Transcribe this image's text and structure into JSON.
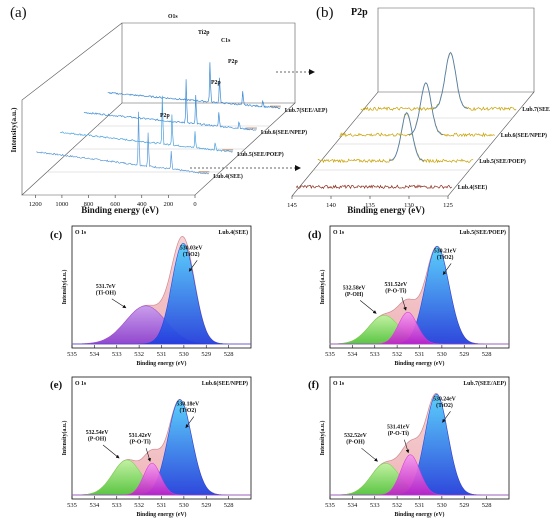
{
  "colors": {
    "envelope_fill": "#f2c2c6",
    "envelope_stroke": "#d08a91",
    "ti_o_ti": "#1f3fe0",
    "ti_oh": "#9b4fd6",
    "p_o_ti": "#d83ad6",
    "p_oh": "#6fdc4a",
    "trace_surface": "#6ab0ff",
    "trace_a": "#b06a3a",
    "trace_b_yellow": "#c9a000",
    "trace_b_red": "#8b2a1a"
  },
  "chart_data": [
    {
      "type": "line",
      "panel": "(a)",
      "xlabel": "Binding energy (eV)",
      "ylabel": "Intensity(a.u.)",
      "xlim": [
        1300,
        0
      ],
      "xticks": [
        "1200",
        "1000",
        "800",
        "600",
        "400",
        "200",
        "0"
      ],
      "peak_labels": [
        "O1s",
        "Ti2p",
        "C1s",
        "P2p",
        "P2p",
        "P2p"
      ],
      "series": [
        {
          "name": "Lub.4(SEE)",
          "peaks_eV": [
            531,
            459,
            285
          ]
        },
        {
          "name": "Lub.5(SEE/POEP)",
          "peaks_eV": [
            531,
            459,
            285,
            134
          ]
        },
        {
          "name": "Lub.6(SEE/NPEP)",
          "peaks_eV": [
            531,
            459,
            285,
            134
          ]
        },
        {
          "name": "Lub.7(SEE/AEP)",
          "peaks_eV": [
            531,
            459,
            285,
            134
          ]
        }
      ]
    },
    {
      "type": "line",
      "panel": "(b)",
      "title": "P2p",
      "xlabel": "Binding energy (eV)",
      "xlim": [
        145,
        125
      ],
      "xticks": [
        "145",
        "140",
        "135",
        "130",
        "125"
      ],
      "series": [
        {
          "name": "Lub.4(SEE)",
          "peak_eV": null
        },
        {
          "name": "Lub.5(SEE/POEP)",
          "peak_eV": 133.6
        },
        {
          "name": "Lub.6(SEE/NPEP)",
          "peak_eV": 133.9
        },
        {
          "name": "Lub.7(SEE/AEP)",
          "peak_eV": 133.5
        }
      ]
    },
    {
      "type": "area",
      "panel": "(c)",
      "title": "O 1s",
      "legend": "Lub.4(SEE)",
      "xlabel": "Binding energy (eV)",
      "ylabel": "Intensity(a.u.)",
      "xlim": [
        535,
        527
      ],
      "xticks": [
        "535",
        "534",
        "533",
        "532",
        "531",
        "530",
        "529",
        "528"
      ],
      "components": [
        {
          "label": "530.03eV",
          "species": "(TiO2)",
          "center": 530.03,
          "height": 0.95,
          "fwhm": 1.2,
          "color_key": "ti_o_ti"
        },
        {
          "label": "531.7eV",
          "species": "(Ti-OH)",
          "center": 531.7,
          "height": 0.36,
          "fwhm": 2.1,
          "color_key": "ti_oh"
        }
      ]
    },
    {
      "type": "area",
      "panel": "(d)",
      "title": "O 1s",
      "legend": "Lub.5(SEE/POEP)",
      "xlabel": "Binding energy (eV)",
      "ylabel": "Intensity(a.u.)",
      "xlim": [
        535,
        527
      ],
      "xticks": [
        "535",
        "534",
        "533",
        "532",
        "531",
        "530",
        "529",
        "528"
      ],
      "components": [
        {
          "label": "530.21eV",
          "species": "(TiO2)",
          "center": 530.21,
          "height": 0.92,
          "fwhm": 1.25,
          "color_key": "ti_o_ti"
        },
        {
          "label": "531.52eV",
          "species": "(P-O-Ti)",
          "center": 531.52,
          "height": 0.3,
          "fwhm": 1.0,
          "color_key": "p_o_ti"
        },
        {
          "label": "532.58eV",
          "species": "(P-OH)",
          "center": 532.58,
          "height": 0.27,
          "fwhm": 1.6,
          "color_key": "p_oh"
        }
      ]
    },
    {
      "type": "area",
      "panel": "(e)",
      "title": "O 1s",
      "legend": "Lub.6(SEE/NPEP)",
      "xlabel": "Binding energy (eV)",
      "ylabel": "Intensity(a.u.)",
      "xlim": [
        535,
        527
      ],
      "xticks": [
        "535",
        "534",
        "533",
        "532",
        "531",
        "530",
        "529",
        "528"
      ],
      "components": [
        {
          "label": "530.18eV",
          "species": "(TiO2)",
          "center": 530.18,
          "height": 0.9,
          "fwhm": 1.25,
          "color_key": "ti_o_ti"
        },
        {
          "label": "531.42eV",
          "species": "(P-O-Ti)",
          "center": 531.42,
          "height": 0.3,
          "fwhm": 0.9,
          "color_key": "p_o_ti"
        },
        {
          "label": "532.54eV",
          "species": "(P-OH)",
          "center": 532.54,
          "height": 0.33,
          "fwhm": 1.5,
          "color_key": "p_oh"
        }
      ]
    },
    {
      "type": "area",
      "panel": "(f)",
      "title": "O 1s",
      "legend": "Lub.7(SEE/AEP)",
      "xlabel": "Binding energy (eV)",
      "ylabel": "Intensity(a.u.)",
      "xlim": [
        535,
        527
      ],
      "xticks": [
        "535",
        "534",
        "533",
        "532",
        "531",
        "530",
        "529",
        "528"
      ],
      "components": [
        {
          "label": "530.24eV",
          "species": "(TiO2)",
          "center": 530.24,
          "height": 0.95,
          "fwhm": 1.2,
          "color_key": "ti_o_ti"
        },
        {
          "label": "531.41eV",
          "species": "(P-O-Ti)",
          "center": 531.41,
          "height": 0.38,
          "fwhm": 1.0,
          "color_key": "p_o_ti"
        },
        {
          "label": "532.52eV",
          "species": "(P-OH)",
          "center": 532.52,
          "height": 0.3,
          "fwhm": 1.5,
          "color_key": "p_oh"
        }
      ]
    }
  ]
}
